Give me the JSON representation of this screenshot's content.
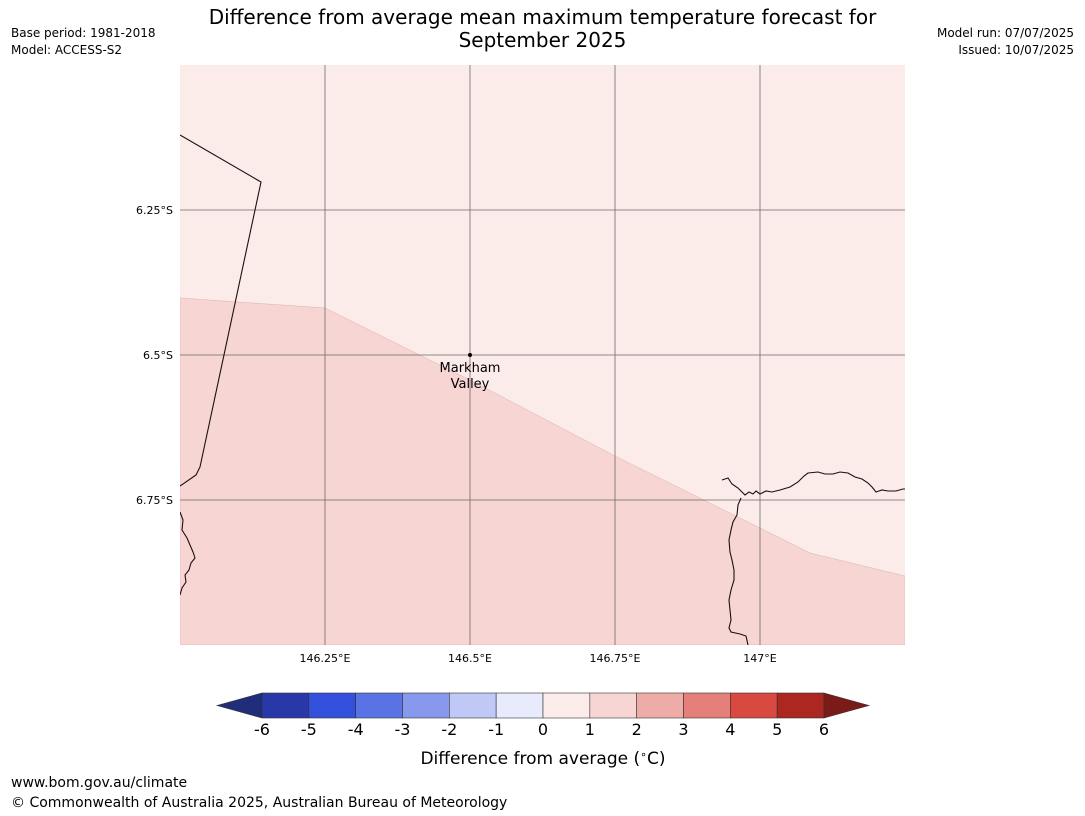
{
  "title_line1": "Difference from average mean maximum temperature forecast for",
  "title_line2": "September 2025",
  "base_period": "Base period: 1981-2018",
  "model": "Model: ACCESS-S2",
  "model_run": "Model run: 07/07/2025",
  "issued": "Issued: 10/07/2025",
  "place_label_line1": "Markham",
  "place_label_line2": "Valley",
  "lat_labels": [
    "6.25°S",
    "6.5°S",
    "6.75°S"
  ],
  "lon_labels": [
    "146.25°E",
    "146.5°E",
    "146.75°E",
    "147°E"
  ],
  "legend": {
    "title": "Difference from average ($^\\circ$C)",
    "title_text": "Difference from average (",
    "title_unit": "C)",
    "ticks": [
      "-6",
      "-5",
      "-4",
      "-3",
      "-2",
      "-1",
      "0",
      "1",
      "2",
      "3",
      "4",
      "5",
      "6"
    ],
    "under_color": "#1f2d7a",
    "over_color": "#7a1b17",
    "colors": [
      "#2838a8",
      "#3350dc",
      "#5a73e4",
      "#8898ec",
      "#c0c8f5",
      "#e8ebfb",
      "#fbebe9",
      "#f6d5d3",
      "#edaca8",
      "#e47f79",
      "#d84a40",
      "#ab2720"
    ]
  },
  "map": {
    "region_color_1_to_2": "#f6d5d3",
    "region_color_0_to_1": "#fbebe9"
  },
  "footer_url": "www.bom.gov.au/climate",
  "footer_copyright": "© Commonwealth of Australia 2025, Australian Bureau of Meteorology"
}
